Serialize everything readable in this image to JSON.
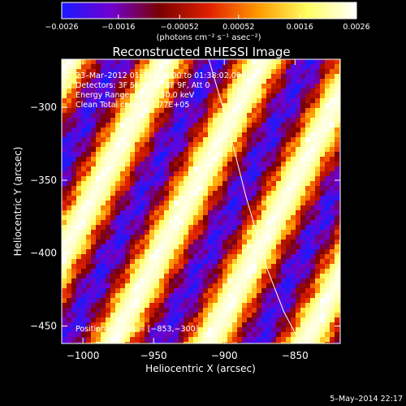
{
  "chart_data": {
    "type": "heatmap",
    "title": "Reconstructed RHESSI Image",
    "xlabel": "Heliocentric X (arcsec)",
    "ylabel": "Heliocentric Y (arcsec)",
    "xlim": [
      -1015,
      -818
    ],
    "ylim": [
      -462,
      -267
    ],
    "xticks": [
      -1000,
      -950,
      -900,
      -850
    ],
    "xtick_labels": [
      "−1000",
      "−950",
      "−900",
      "−850"
    ],
    "yticks": [
      -300,
      -350,
      -400,
      -450
    ],
    "ytick_labels": [
      "−300",
      "−350",
      "−400",
      "−450"
    ],
    "colorbar": {
      "min": -0.0026,
      "max": 0.0026,
      "ticks": [
        -0.0026,
        -0.0016,
        -0.00052,
        0.00052,
        0.0016,
        0.0026
      ],
      "tick_labels": [
        "−0.0026",
        "−0.0016",
        "−0.00052",
        "0.00052",
        "0.0016",
        "0.0026"
      ],
      "unit_label": "(photons cm⁻² s⁻¹ asec⁻²)",
      "colormap": [
        "#1a1aff",
        "#7000d0",
        "#7a0000",
        "#e02000",
        "#ff9900",
        "#ffff60",
        "#ffffff"
      ]
    },
    "annotations": [
      "23–Mar–2012 01:32:02.000 to 01:38:02.000",
      "Detectors: 3F 5F 6F 7F 8F 9F, Att 0",
      "Energy Range: 25.0 – 50.0 keV",
      "Clean    Total counts: 1.77E+05"
    ],
    "peak_label": "Position of Peak = [−853,−300]",
    "peak": [
      -853,
      -300
    ],
    "limb": [
      [
        -911,
        -267
      ],
      [
        -898,
        -310
      ],
      [
        -885,
        -360
      ],
      [
        -870,
        -410
      ],
      [
        -858,
        -440
      ],
      [
        -846,
        -462
      ]
    ],
    "footer": "5–May–2014 22:17"
  }
}
